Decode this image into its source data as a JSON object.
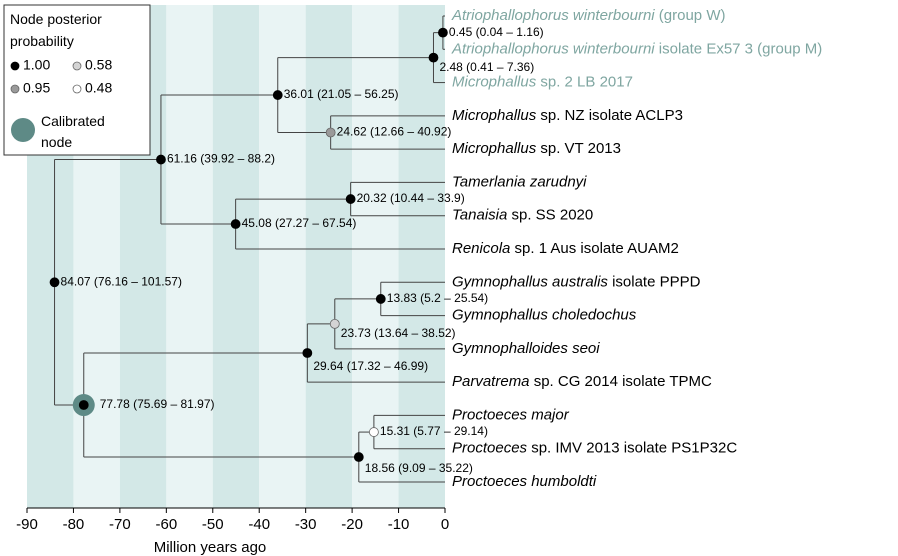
{
  "chart_data": {
    "type": "tree",
    "xlabel": "Million years ago",
    "xlim": [
      -90,
      0
    ],
    "xticks": [
      -90,
      -80,
      -70,
      -60,
      -50,
      -40,
      -30,
      -20,
      -10,
      0
    ],
    "band_colors": [
      "#d3e8e7",
      "#e9f4f4"
    ],
    "legend": {
      "title": "Node posterior probability",
      "items": [
        {
          "value": 1,
          "label": "1.00",
          "color": "#000000"
        },
        {
          "value": 0.58,
          "label": "0.58",
          "color": "#d4d4d4"
        },
        {
          "value": 0.95,
          "label": "0.95",
          "color": "#9a9a9a"
        },
        {
          "value": 0.48,
          "label": "0.48",
          "color": "#ffffff"
        }
      ],
      "calibrated_label": "Calibrated node",
      "calibrated_color": "#5e8a86"
    },
    "tips": [
      {
        "italic": "Atriophallophorus winterbourni",
        "plain": " (group W)",
        "color": "#7fa6a1"
      },
      {
        "italic": "Atriophallophorus winterbourni",
        "plain": " isolate Ex57 3 (group M)",
        "color": "#7fa6a1"
      },
      {
        "italic": "Microphallus",
        "plain": " sp. 2 LB 2017",
        "color": "#7fa6a1"
      },
      {
        "italic": "Microphallus",
        "plain": " sp. NZ isolate ACLP3",
        "color": "#000000"
      },
      {
        "italic": "Microphallus",
        "plain": " sp. VT 2013",
        "color": "#000000"
      },
      {
        "italic": "Tamerlania zarudnyi",
        "color": "#000000"
      },
      {
        "italic": "Tanaisia",
        "plain": " sp. SS 2020",
        "color": "#000000"
      },
      {
        "italic": "Renicola",
        "plain": " sp. 1 Aus isolate AUAM2",
        "color": "#000000"
      },
      {
        "italic": "Gymnophallus australis",
        "plain": " isolate PPPD",
        "color": "#000000"
      },
      {
        "italic": "Gymnophallus choledochus",
        "color": "#000000"
      },
      {
        "italic": "Gymnophalloides seoi",
        "color": "#000000"
      },
      {
        "italic": "Parvatrema",
        "plain": " sp. CG 2014 isolate TPMC",
        "color": "#000000"
      },
      {
        "italic": "Proctoeces major",
        "color": "#000000"
      },
      {
        "italic": "Proctoeces",
        "plain": " sp. IMV 2013 isolate PS1P32C",
        "color": "#000000"
      },
      {
        "italic": "Proctoeces humboldti",
        "color": "#000000"
      }
    ],
    "nodes": [
      {
        "x": -0.45,
        "label": "0.45 (0.04 – 1.16)",
        "posterior": 1,
        "children": [
          {
            "tip": 0
          },
          {
            "tip": 1
          }
        ]
      },
      {
        "x": -2.48,
        "label": "2.48 (0.41 – 7.36)",
        "posterior": 1,
        "children": [
          {
            "node": 0
          },
          {
            "tip": 2
          }
        ]
      },
      {
        "x": -36.01,
        "label": "36.01 (21.05 – 56.25)",
        "posterior": 1,
        "children": [
          {
            "node": 1
          },
          {
            "node": 3
          }
        ]
      },
      {
        "x": -24.62,
        "label": "24.62 (12.66 – 40.92)",
        "posterior": 0.95,
        "children": [
          {
            "tip": 3
          },
          {
            "tip": 4
          }
        ]
      },
      {
        "x": -61.16,
        "label": "61.16 (39.92 – 88.2)",
        "posterior": 1,
        "children": [
          {
            "node": 2
          },
          {
            "node": 6
          }
        ]
      },
      {
        "x": -20.32,
        "label": "20.32 (10.44 – 33.9)",
        "posterior": 1,
        "children": [
          {
            "tip": 5
          },
          {
            "tip": 6
          }
        ]
      },
      {
        "x": -45.08,
        "label": "45.08 (27.27 – 67.54)",
        "posterior": 1,
        "children": [
          {
            "node": 5
          },
          {
            "tip": 7
          }
        ]
      },
      {
        "x": -84.07,
        "label": "84.07 (76.16 – 101.57)",
        "posterior": 1,
        "children": [
          {
            "node": 4
          },
          {
            "node": 11
          }
        ]
      },
      {
        "x": -13.83,
        "label": "13.83 (5.2 – 25.54)",
        "posterior": 1,
        "children": [
          {
            "tip": 8
          },
          {
            "tip": 9
          }
        ]
      },
      {
        "x": -23.73,
        "label": "23.73 (13.64 – 38.52)",
        "posterior": 0.58,
        "children": [
          {
            "node": 8
          },
          {
            "tip": 10
          }
        ]
      },
      {
        "x": -29.64,
        "label": "29.64 (17.32 – 46.99)",
        "posterior": 1,
        "children": [
          {
            "node": 9
          },
          {
            "tip": 11
          }
        ]
      },
      {
        "x": -77.78,
        "label": "77.78 (75.69 – 81.97)",
        "posterior": 1,
        "calibrated": true,
        "children": [
          {
            "node": 10
          },
          {
            "node": 13
          }
        ]
      },
      {
        "x": -15.31,
        "label": "15.31 (5.77 – 29.14)",
        "posterior": 0.48,
        "children": [
          {
            "tip": 12
          },
          {
            "tip": 13
          }
        ]
      },
      {
        "x": -18.56,
        "label": "18.56 (9.09 – 35.22)",
        "posterior": 1,
        "children": [
          {
            "node": 12
          },
          {
            "tip": 14
          }
        ]
      }
    ]
  }
}
